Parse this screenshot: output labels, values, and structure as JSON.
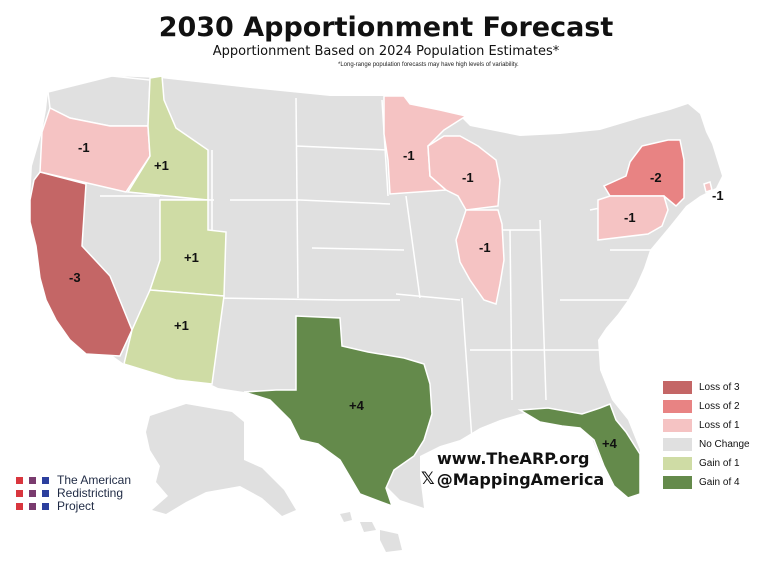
{
  "title": "2030 Apportionment Forecast",
  "subtitle": "Apportionment Based on 2024 Population Estimates*",
  "note": "*Long-range population forecasts may have high levels of variability.",
  "colors": {
    "loss3": "#c46666",
    "loss2": "#e88383",
    "loss1": "#f5c3c3",
    "none": "#e0e0e0",
    "gain1": "#cfdca5",
    "gain4": "#648a4b",
    "border": "#ffffff"
  },
  "legend": [
    {
      "label": "Loss of 3",
      "color": "#c46666"
    },
    {
      "label": "Loss of 2",
      "color": "#e88383"
    },
    {
      "label": "Loss of 1",
      "color": "#f5c3c3"
    },
    {
      "label": "No Change",
      "color": "#e0e0e0"
    },
    {
      "label": "Gain of 1",
      "color": "#cfdca5"
    },
    {
      "label": "Gain of 4",
      "color": "#648a4b"
    }
  ],
  "states": [
    {
      "name": "Oregon",
      "change": "-1"
    },
    {
      "name": "Idaho",
      "change": "+1"
    },
    {
      "name": "California",
      "change": "-3"
    },
    {
      "name": "Utah",
      "change": "+1"
    },
    {
      "name": "Arizona",
      "change": "+1"
    },
    {
      "name": "Texas",
      "change": "+4"
    },
    {
      "name": "Minnesota",
      "change": "-1"
    },
    {
      "name": "Wisconsin",
      "change": "-1"
    },
    {
      "name": "Illinois",
      "change": "-1"
    },
    {
      "name": "New York",
      "change": "-2"
    },
    {
      "name": "Pennsylvania",
      "change": "-1"
    },
    {
      "name": "Rhode Island",
      "change": "-1"
    },
    {
      "name": "Florida",
      "change": "+4"
    }
  ],
  "website": "www.TheARP.org",
  "handle": "@MappingAmerica",
  "logo": {
    "line1": "The American",
    "line2": "Redistricting",
    "line3": "Project",
    "dot_colors": [
      "#d9363e",
      "#7a3b6e",
      "#2c3f9e"
    ]
  }
}
